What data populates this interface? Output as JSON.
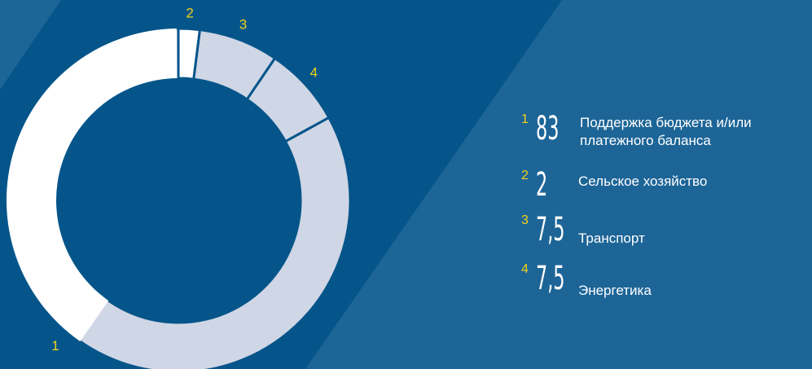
{
  "chart_data": {
    "type": "pie",
    "variant": "donut",
    "unit": "%",
    "slices": [
      {
        "index": "1",
        "value": 83,
        "value_label": "83",
        "label": "Поддержка бюджета и/или платежного баланса"
      },
      {
        "index": "2",
        "value": 2,
        "value_label": "2",
        "label": "Сельское хозяйство"
      },
      {
        "index": "3",
        "value": 7.5,
        "value_label": "7,5",
        "label": "Транспорт"
      },
      {
        "index": "4",
        "value": 7.5,
        "value_label": "7,5",
        "label": "Энергетика"
      }
    ],
    "legend_position": "right"
  },
  "colors": {
    "background": "#05558a",
    "stripe": "#1d6597",
    "slice_main": "#ffffff",
    "slice_alt": "#cfd6e5",
    "labels": "#f2d21c",
    "text": "#ffffff"
  },
  "legend": [
    {
      "index": "1",
      "value": "83",
      "line1": "Поддержка бюджета и/или",
      "line2": "платежного баланса"
    },
    {
      "index": "2",
      "value": "2",
      "line1": "Сельское хозяйство",
      "line2": ""
    },
    {
      "index": "3",
      "value": "7,5",
      "line1": "Транспорт",
      "line2": ""
    },
    {
      "index": "4",
      "value": "7,5",
      "line1": "Энергетика",
      "line2": ""
    }
  ]
}
